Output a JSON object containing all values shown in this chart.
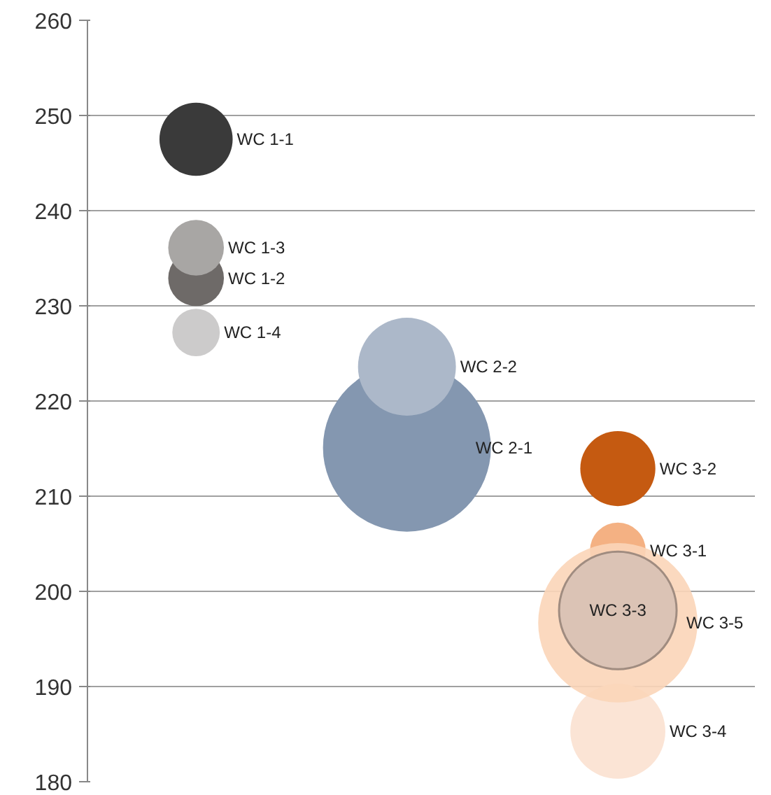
{
  "chart_data": {
    "type": "bubble",
    "categories": [
      null,
      null,
      null
    ],
    "ylim": [
      180,
      260
    ],
    "yticks": [
      180,
      190,
      200,
      210,
      220,
      230,
      240,
      250,
      260
    ],
    "grid": "y",
    "legend": false,
    "tick_labels": "y",
    "series": [
      {
        "name": "WC 1-1",
        "color": "#3a3a3a",
        "values": [
          247.5,
          null,
          null
        ],
        "sizes": [
          0.19,
          null,
          null
        ]
      },
      {
        "name": "WC 1-2",
        "color": "#6e6a68",
        "values": [
          232.9,
          null,
          null
        ],
        "sizes": [
          0.11,
          null,
          null
        ]
      },
      {
        "name": "WC 1-3",
        "color": "#a8a6a4",
        "values": [
          236.1,
          null,
          null
        ],
        "sizes": [
          0.11,
          null,
          null
        ]
      },
      {
        "name": "WC 1-4",
        "color": "#cccbcb",
        "values": [
          227.2,
          null,
          null
        ],
        "sizes": [
          0.08,
          null,
          null
        ]
      },
      {
        "name": "WC 2-1",
        "color": "#8497b0",
        "values": [
          null,
          215.1,
          null
        ],
        "sizes": [
          null,
          1,
          null
        ]
      },
      {
        "name": "WC 2-2",
        "color": "#acb8c9",
        "values": [
          null,
          223.6,
          null
        ],
        "sizes": [
          null,
          0.34,
          null
        ]
      },
      {
        "name": "WC 3-1",
        "color": "#f4b183",
        "values": [
          null,
          null,
          204.3
        ],
        "sizes": [
          null,
          null,
          0.11
        ]
      },
      {
        "name": "WC 3-2",
        "color": "#c55a11",
        "values": [
          null,
          null,
          212.9
        ],
        "sizes": [
          null,
          null,
          0.2
        ]
      },
      {
        "name": "WC 3-4",
        "color": "#fbe4d5",
        "values": [
          null,
          null,
          185.3
        ],
        "sizes": [
          null,
          null,
          0.32
        ]
      },
      {
        "name": "WC 3-5",
        "color": "#fbd5b8",
        "values": [
          null,
          null,
          196.7
        ],
        "sizes": [
          null,
          null,
          0.9
        ]
      },
      {
        "name": "WC 3-3",
        "color": "#dbc3b5",
        "values": [
          null,
          null,
          198.0
        ],
        "sizes": [
          null,
          null,
          0.49
        ]
      }
    ]
  }
}
